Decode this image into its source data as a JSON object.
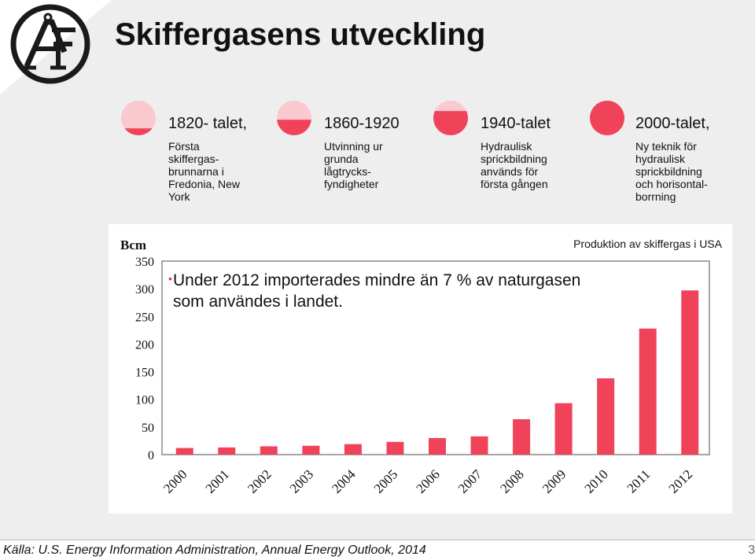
{
  "slide": {
    "title": "Skiffergasens utveckling",
    "source": "Källa: U.S. Energy Information Administration, Annual Energy Outlook, 2014",
    "page_number": "3",
    "logo": "ÅF logo"
  },
  "timeline": [
    {
      "heading": "1820- talet,",
      "description": "Första\nskiffergas-\nbrunnarna i\nFredonia, New\nYork",
      "fill_level": 0.2
    },
    {
      "heading": "1860-1920",
      "description": "Utvinning ur\ngrunda\nlågtrycks-\nfyndigheter",
      "fill_level": 0.45
    },
    {
      "heading": "1940-talet",
      "description": "Hydraulisk\nsprickbildning\nanvänds för\nförsta gången",
      "fill_level": 0.7
    },
    {
      "heading": "2000-talet,",
      "description": "Ny teknik för\nhydraulisk\nsprickbildning\noch horisontal-\nborrning",
      "fill_level": 1.0
    }
  ],
  "note": "Under 2012 importerades mindre än 7 % av naturgasen som användes i landet.",
  "colors": {
    "accent": "#f0435a",
    "circle_light": "#f9c9cf",
    "panel": "#eeeeee"
  },
  "chart_data": {
    "type": "bar",
    "title": "Produktion av skiffergas i USA",
    "ylabel": "Bcm",
    "categories": [
      "2000",
      "2001",
      "2002",
      "2003",
      "2004",
      "2005",
      "2006",
      "2007",
      "2008",
      "2009",
      "2010",
      "2011",
      "2012"
    ],
    "values": [
      12,
      13,
      15,
      16,
      19,
      23,
      30,
      33,
      64,
      93,
      138,
      228,
      297
    ],
    "ylim": [
      0,
      350
    ],
    "yticks": [
      "350",
      "300",
      "250",
      "200",
      "150",
      "100",
      "50",
      "0"
    ],
    "grid": false
  }
}
